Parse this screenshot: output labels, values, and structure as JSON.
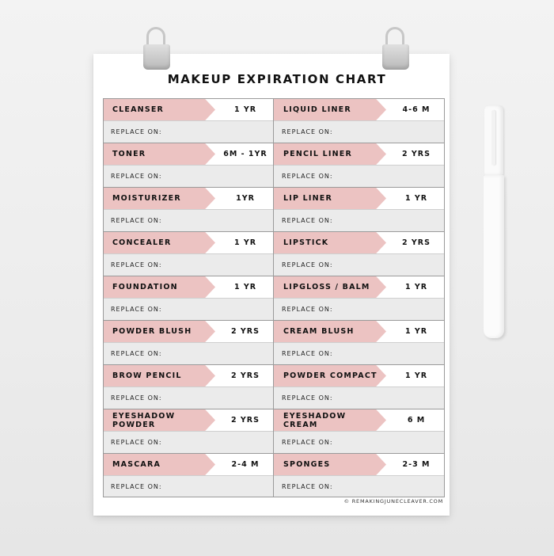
{
  "title": "MAKEUP EXPIRATION CHART",
  "replace_label": "REPLACE ON:",
  "footer": "© REMAKINGJUNECLEAVER.COM",
  "colors": {
    "arrow": "#ecc3c2",
    "replace_bg": "#ebebeb"
  },
  "rows": [
    {
      "left": {
        "name": "CLEANSER",
        "duration": "1 YR"
      },
      "right": {
        "name": "LIQUID LINER",
        "duration": "4-6 M"
      }
    },
    {
      "left": {
        "name": "TONER",
        "duration": "6M - 1YR"
      },
      "right": {
        "name": "PENCIL LINER",
        "duration": "2 YRS"
      }
    },
    {
      "left": {
        "name": "MOISTURIZER",
        "duration": "1YR"
      },
      "right": {
        "name": "LIP LINER",
        "duration": "1 YR"
      }
    },
    {
      "left": {
        "name": "CONCEALER",
        "duration": "1 YR"
      },
      "right": {
        "name": "LIPSTICK",
        "duration": "2 YRS"
      }
    },
    {
      "left": {
        "name": "FOUNDATION",
        "duration": "1 YR"
      },
      "right": {
        "name": "LIPGLOSS / BALM",
        "duration": "1 YR"
      }
    },
    {
      "left": {
        "name": "POWDER BLUSH",
        "duration": "2 YRS"
      },
      "right": {
        "name": "CREAM BLUSH",
        "duration": "1 YR"
      }
    },
    {
      "left": {
        "name": "BROW PENCIL",
        "duration": "2 YRS"
      },
      "right": {
        "name": "POWDER COMPACT",
        "duration": "1 YR"
      }
    },
    {
      "left": {
        "name": "EYESHADOW POWDER",
        "duration": "2 YRS"
      },
      "right": {
        "name": "EYESHADOW CREAM",
        "duration": "6 M"
      }
    },
    {
      "left": {
        "name": "MASCARA",
        "duration": "2-4 M"
      },
      "right": {
        "name": "SPONGES",
        "duration": "2-3 M"
      }
    }
  ]
}
